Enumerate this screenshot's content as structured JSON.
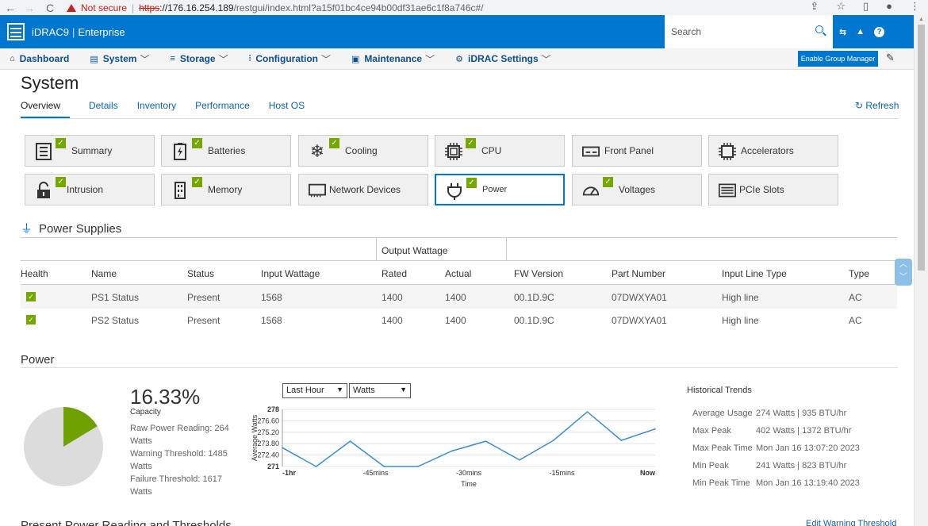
{
  "browser": {
    "back": "←",
    "forward": "→",
    "reload": "C",
    "not_secure": "Not secure",
    "scheme": "https",
    "host": "://176.16.254.189",
    "path": "/restgui/index.html?a15f01bc4ce94b00df31ae6c1f8a746c#/"
  },
  "header": {
    "brand": "iDRAC9",
    "edition": "Enterprise",
    "search_placeholder": "Search"
  },
  "nav": {
    "items": [
      {
        "label": "Dashboard",
        "icon": "home-icon",
        "chevron": false
      },
      {
        "label": "System",
        "icon": "server-icon",
        "chevron": true
      },
      {
        "label": "Storage",
        "icon": "storage-icon",
        "chevron": true
      },
      {
        "label": "Configuration",
        "icon": "sliders-icon",
        "chevron": true
      },
      {
        "label": "Maintenance",
        "icon": "maintenance-icon",
        "chevron": true
      },
      {
        "label": "iDRAC Settings",
        "icon": "gear-icon",
        "chevron": true
      }
    ],
    "group_manager": "Enable Group Manager"
  },
  "page": {
    "title": "System",
    "tabs": [
      "Overview",
      "Details",
      "Inventory",
      "Performance",
      "Host OS"
    ],
    "active_tab": "Overview",
    "refresh": "Refresh"
  },
  "tiles": [
    {
      "label": "Summary",
      "icon": "summary-icon",
      "check": true
    },
    {
      "label": "Batteries",
      "icon": "battery-icon",
      "check": true
    },
    {
      "label": "Cooling",
      "icon": "snowflake-icon",
      "check": true
    },
    {
      "label": "CPU",
      "icon": "cpu-icon",
      "check": true
    },
    {
      "label": "Front Panel",
      "icon": "front-panel-icon",
      "check": false
    },
    {
      "label": "Accelerators",
      "icon": "accelerator-icon",
      "check": false
    },
    {
      "label": "Intrusion",
      "icon": "lock-icon",
      "check": true
    },
    {
      "label": "Memory",
      "icon": "memory-icon",
      "check": true
    },
    {
      "label": "Network Devices",
      "icon": "network-icon",
      "check": false
    },
    {
      "label": "Power",
      "icon": "plug-icon",
      "check": true,
      "selected": true
    },
    {
      "label": "Voltages",
      "icon": "gauge-icon",
      "check": true
    },
    {
      "label": "PCIe Slots",
      "icon": "pcie-icon",
      "check": false
    }
  ],
  "power_supplies": {
    "title": "Power Supplies",
    "group_header": "Output Wattage",
    "columns": [
      "Health",
      "Name",
      "Status",
      "Input Wattage",
      "Rated",
      "Actual",
      "FW Version",
      "Part Number",
      "Input Line Type",
      "Type"
    ],
    "rows": [
      {
        "name": "PS1 Status",
        "status": "Present",
        "input": "1568",
        "rated": "1400",
        "actual": "1400",
        "fw": "00.1D.9C",
        "part": "07DWXYA01",
        "line": "High line",
        "type": "AC"
      },
      {
        "name": "PS2 Status",
        "status": "Present",
        "input": "1568",
        "rated": "1400",
        "actual": "1400",
        "fw": "00.1D.9C",
        "part": "07DWXYA01",
        "line": "High line",
        "type": "AC"
      }
    ]
  },
  "power": {
    "title": "Power",
    "capacity_pct": "16.33%",
    "capacity_label": "Capacity",
    "capacity_fraction": 0.1633,
    "raw_reading_1": "Raw Power Reading: 264",
    "raw_reading_2": "Watts",
    "warning_1": "Warning Threshold: 1485",
    "warning_2": "Watts",
    "failure_1": "Failure Threshold: 1617",
    "failure_2": "Watts",
    "pie_colors": {
      "used": "#6fa100",
      "free": "#dcdcdc"
    },
    "range_select": "Last Hour",
    "unit_select": "Watts"
  },
  "chart_data": {
    "type": "line",
    "x": [
      "-1hr",
      "",
      "",
      "-45mins",
      "",
      "",
      "-30mins",
      "",
      "",
      "-15mins",
      "",
      "Now"
    ],
    "tick_labels": [
      "-1hr",
      "-45mins",
      "-30mins",
      "-15mins",
      "Now"
    ],
    "values": [
      273.3,
      271.0,
      274.1,
      271.0,
      271.0,
      272.9,
      274.1,
      271.8,
      274.2,
      277.7,
      274.2,
      275.6
    ],
    "ylim": [
      271,
      278
    ],
    "yticks": [
      "278",
      "276.60",
      "275.20",
      "273.80",
      "272.40",
      "271"
    ],
    "xlabel": "Time",
    "ylabel": "Average Watts",
    "line_color": "#3a8fd0",
    "grid": true
  },
  "historical": {
    "title": "Historical Trends",
    "rows": [
      {
        "label": "Average Usage",
        "value": "274 Watts | 935 BTU/hr"
      },
      {
        "label": "Max Peak",
        "value": "402 Watts | 1372 BTU/hr"
      },
      {
        "label": "Max Peak Time",
        "value": "Mon Jan 16 13:07:20 2023"
      },
      {
        "label": "Min Peak",
        "value": "241 Watts | 823 BTU/hr"
      },
      {
        "label": "Min Peak Time",
        "value": "Mon Jan 16 13:19:40 2023"
      }
    ]
  },
  "bottom": {
    "heading": "Present Power Reading and Thresholds",
    "edit_link": "Edit Warning Threshold"
  }
}
